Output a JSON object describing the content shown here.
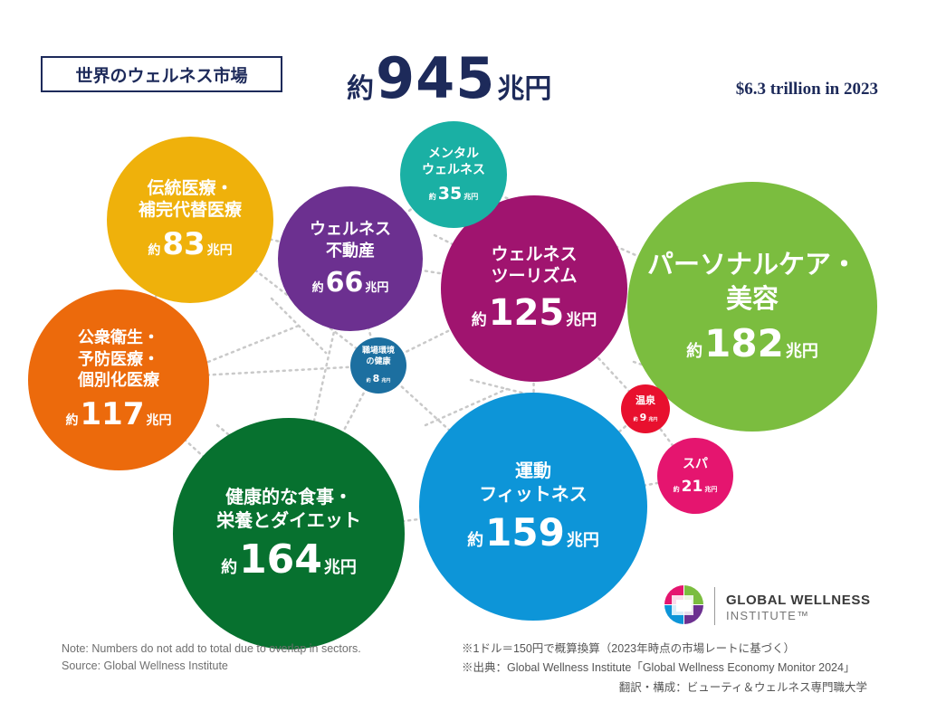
{
  "header": {
    "title": "世界のウェルネス市場",
    "total_prefix": "約",
    "total_number": "945",
    "total_suffix": "兆円",
    "usd_label": "$6.3 trillion in 2023"
  },
  "chart_data": {
    "type": "bubble",
    "title": "世界のウェルネス市場",
    "total": 945,
    "unit": "兆円",
    "sectors": [
      {
        "name": "パーソナルケア・\n美容",
        "value": 182,
        "color": "#7bbd3f"
      },
      {
        "name": "健康的な食事・\n栄養とダイエット",
        "value": 164,
        "color": "#07712f"
      },
      {
        "name": "運動\nフィットネス",
        "value": 159,
        "color": "#0d95d8"
      },
      {
        "name": "ウェルネス\nツーリズム",
        "value": 125,
        "color": "#a0146f"
      },
      {
        "name": "公衆衛生・\n予防医療・\n個別化医療",
        "value": 117,
        "color": "#ec6a0c"
      },
      {
        "name": "伝統医療・\n補完代替医療",
        "value": 83,
        "color": "#efb10b"
      },
      {
        "name": "ウェルネス\n不動産",
        "value": 66,
        "color": "#6c3090"
      },
      {
        "name": "メンタル\nウェルネス",
        "value": 35,
        "color": "#1ab0a4"
      },
      {
        "name": "スパ",
        "value": 21,
        "color": "#e5156f"
      },
      {
        "name": "温泉",
        "value": 9,
        "color": "#e8102e"
      },
      {
        "name": "職場環境\nの健康",
        "value": 8,
        "color": "#1c6fa0"
      }
    ],
    "value_prefix": "約",
    "value_suffix": "兆円"
  },
  "notes": {
    "left_1": "Note: Numbers do not add to total due to overlap in sectors.",
    "left_2": "Source: Global Wellness Institute",
    "right_1": "※1ドル＝150円で概算換算（2023年時点の市場レートに基づく）",
    "right_2": "※出典：Global Wellness Institute「Global Wellness Economy Monitor 2024」",
    "credit": "翻訳・構成：ビューティ＆ウェルネス専門職大学"
  },
  "logo": {
    "line1": "GLOBAL WELLNESS",
    "line2": "INSTITUTE™",
    "colors": [
      "#e5156f",
      "#7bbd3f",
      "#0d95d8",
      "#6c3090"
    ]
  }
}
